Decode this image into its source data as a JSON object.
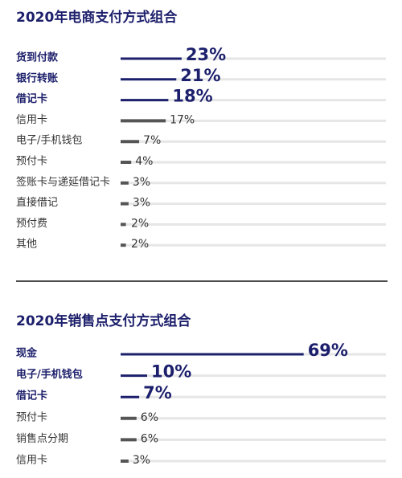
{
  "chart_data": [
    {
      "type": "bar",
      "orientation": "horizontal",
      "title": "2020年电商支付方式组合",
      "categories": [
        "货到付款",
        "银行转账",
        "借记卡",
        "信用卡",
        "电子/手机钱包",
        "预付卡",
        "签账卡与递延借记卡",
        "直接借记",
        "预付费",
        "其他"
      ],
      "values": [
        23,
        21,
        18,
        17,
        7,
        4,
        3,
        3,
        2,
        2
      ],
      "value_labels": [
        "23%",
        "21%",
        "18%",
        "17%",
        "7%",
        "4%",
        "3%",
        "3%",
        "2%",
        "2%"
      ],
      "colors": [
        "#1c1f6b",
        "#1c1f6b",
        "#1c1f6b",
        "#555555",
        "#555555",
        "#555555",
        "#555555",
        "#555555",
        "#555555",
        "#555555"
      ]
    },
    {
      "type": "bar",
      "orientation": "horizontal",
      "title": "2020年销售点支付方式组合",
      "categories": [
        "现金",
        "电子/手机钱包",
        "借记卡",
        "预付卡",
        "销售点分期",
        "信用卡"
      ],
      "values": [
        69,
        10,
        7,
        6,
        6,
        3
      ],
      "value_labels": [
        "69%",
        "10%",
        "7%",
        "6%",
        "6%",
        "3%"
      ],
      "colors": [
        "#1c1f6b",
        "#1c1f6b",
        "#1c1f6b",
        "#555555",
        "#555555",
        "#555555"
      ]
    }
  ]
}
